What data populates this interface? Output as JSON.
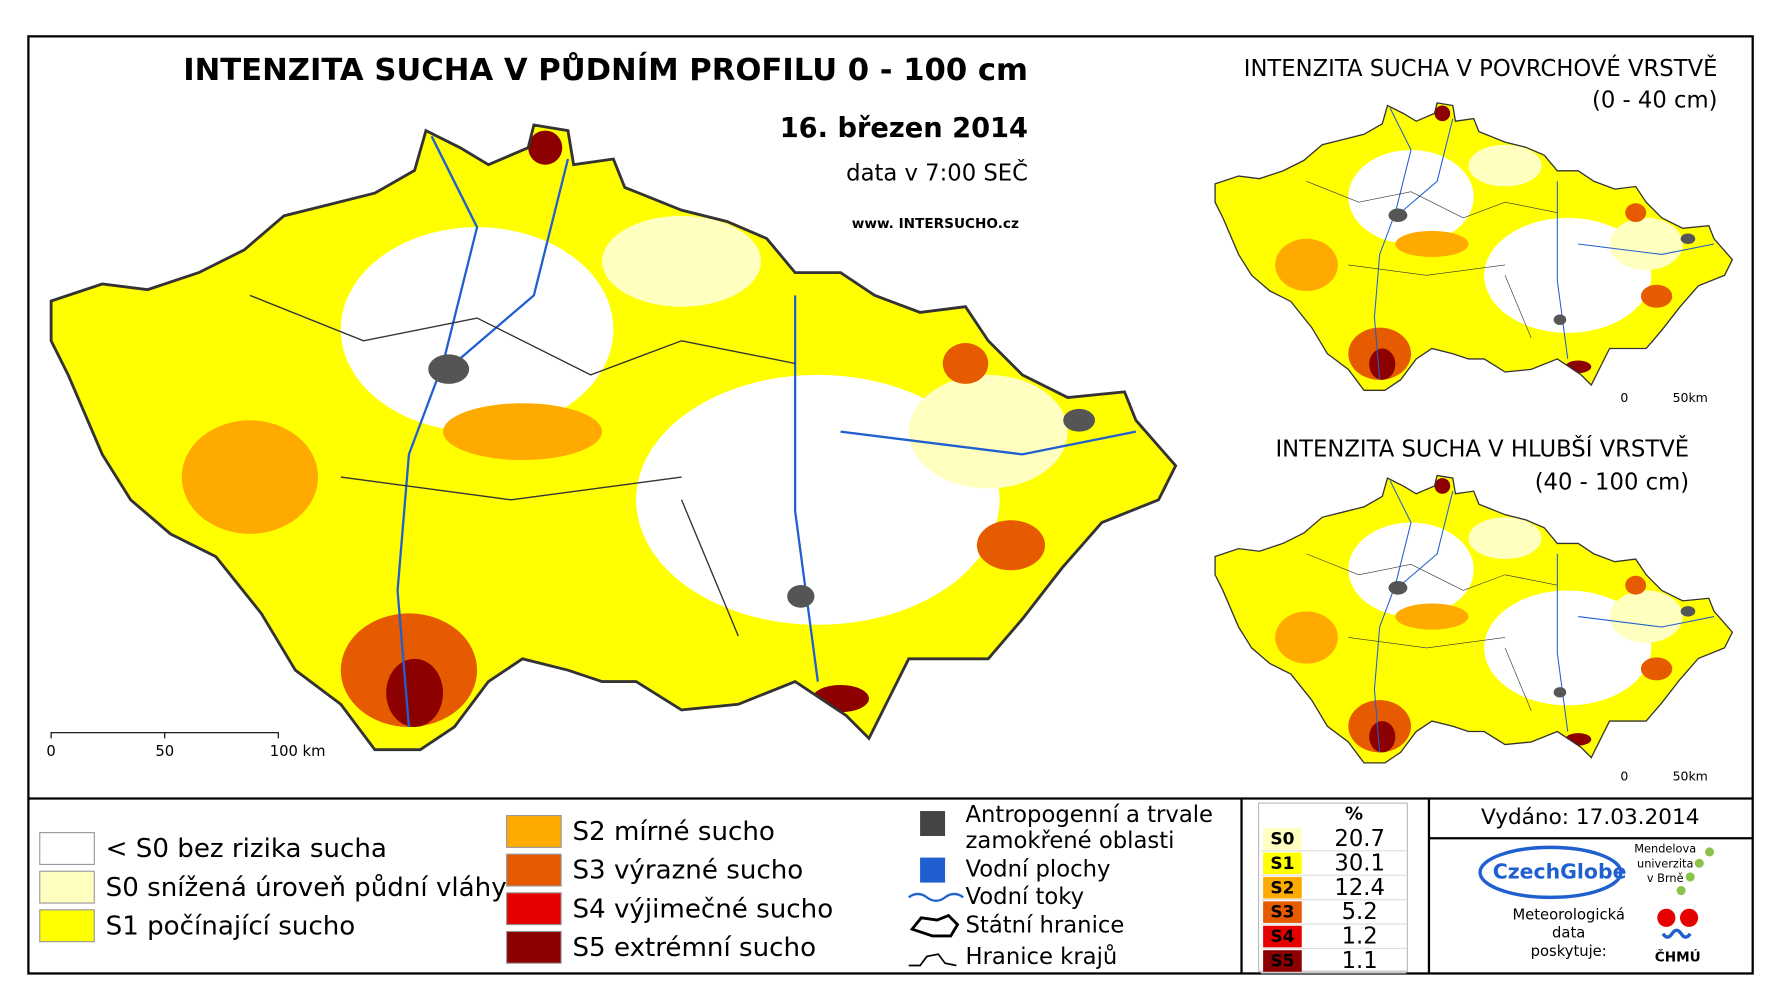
{
  "main_map": {
    "title": "INTENZITA SUCHA V PŮDNÍM PROFILU 0 - 100 cm",
    "date": "16. březen 2014",
    "time": "data v 7:00 SEČ",
    "website": "www. INTERSUCHO.cz",
    "scale": [
      "0",
      "50",
      "100 km"
    ]
  },
  "inset_top": {
    "title": "INTENZITA SUCHA V POVRCHOVÉ VRSTVĚ",
    "subtitle": "(0 - 40 cm)",
    "scale": [
      "0",
      "50km"
    ]
  },
  "inset_bottom": {
    "title": "INTENZITA SUCHA V HLUBŠÍ VRSTVĚ",
    "subtitle": "(40 - 100 cm)",
    "scale": [
      "0",
      "50km"
    ]
  },
  "legend": {
    "classes": [
      {
        "label": "< S0 bez rizika sucha",
        "color": "#ffffff"
      },
      {
        "label": "S0 snížená úroveň půdní vláhy",
        "color": "#ffffc0"
      },
      {
        "label": "S1 počínající sucho",
        "color": "#ffff00"
      },
      {
        "label": "S2 mírné sucho",
        "color": "#ffaa00"
      },
      {
        "label": "S3 výrazné sucho",
        "color": "#e65a00"
      },
      {
        "label": "S4 výjimečné sucho",
        "color": "#e60000"
      },
      {
        "label": "S5 extrémní sucho",
        "color": "#8c0000"
      }
    ],
    "features": [
      "Antropogenní a trvale",
      "zamokřené oblasti",
      "Vodní plochy",
      "Vodní toky",
      "Státní hranice",
      "Hranice krajů"
    ]
  },
  "stats": {
    "header": "%",
    "rows": [
      {
        "class": "S0",
        "value": 20.7,
        "color": "#ffffc0"
      },
      {
        "class": "S1",
        "value": 30.1,
        "color": "#ffff00"
      },
      {
        "class": "S2",
        "value": 12.4,
        "color": "#ffaa00"
      },
      {
        "class": "S3",
        "value": 5.2,
        "color": "#e65a00"
      },
      {
        "class": "S4",
        "value": 1.2,
        "color": "#e60000"
      },
      {
        "class": "S5",
        "value": 1.1,
        "color": "#8c0000"
      }
    ]
  },
  "issued": "Vydáno: 17.03.2014",
  "credits": {
    "czechglobe": "CzechGlobe",
    "mendel": [
      "Mendelova",
      "univerzita",
      "v Brně"
    ],
    "provider": [
      "Meteorologická",
      "data",
      "poskytuje:"
    ],
    "chmu": "ČHMÚ"
  }
}
